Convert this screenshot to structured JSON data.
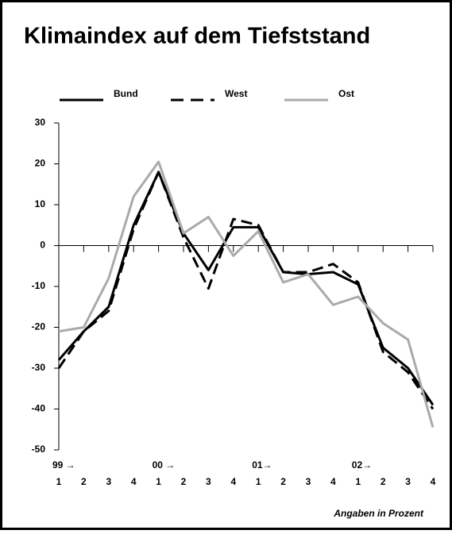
{
  "chart_data": {
    "type": "line",
    "title": "Klimaindex auf dem Tiefststand",
    "annotation": "Angaben in Prozent",
    "categories": [
      "1",
      "2",
      "3",
      "4",
      "1",
      "2",
      "3",
      "4",
      "1",
      "2",
      "3",
      "4",
      "1",
      "2",
      "3",
      "4"
    ],
    "year_labels": [
      "99 →",
      null,
      null,
      null,
      "00 →",
      null,
      null,
      null,
      "01→",
      null,
      null,
      null,
      "02→",
      null,
      null,
      null
    ],
    "ylim": [
      -50,
      30
    ],
    "yticks": [
      30,
      20,
      10,
      0,
      -10,
      -20,
      -30,
      -40,
      -50
    ],
    "series": [
      {
        "name": "Bund",
        "color": "#000000",
        "dash": false,
        "values": [
          -28,
          -21,
          -15,
          5,
          18,
          3,
          -6,
          4.5,
          4.5,
          -6.5,
          -7,
          -6.5,
          -9.5,
          -25,
          -30,
          -39
        ]
      },
      {
        "name": "West",
        "color": "#000000",
        "dash": true,
        "values": [
          -30,
          -21,
          -16,
          4,
          18,
          2,
          -10.5,
          6.5,
          5,
          -6.5,
          -6.5,
          -4.5,
          -9,
          -26,
          -31,
          -40
        ]
      },
      {
        "name": "Ost",
        "color": "#aaaaaa",
        "dash": false,
        "values": [
          -21,
          -20,
          -8,
          12,
          20.5,
          3,
          7,
          -2.5,
          3.5,
          -9,
          -7,
          -14.5,
          -12.5,
          -19,
          -23,
          -44.5
        ]
      }
    ]
  }
}
